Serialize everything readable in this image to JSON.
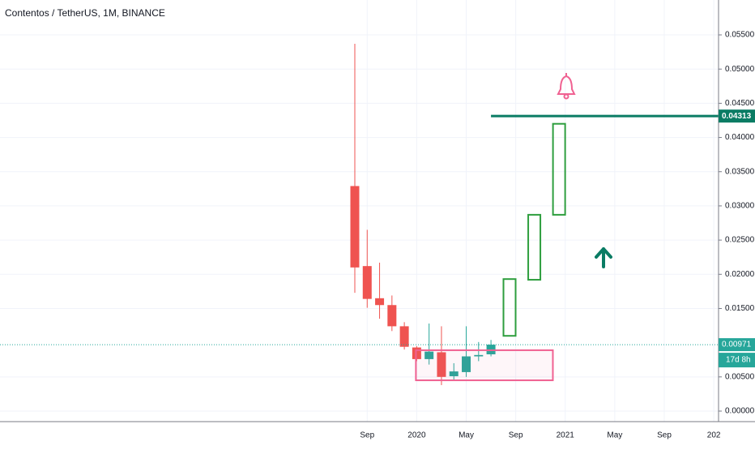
{
  "chart_data": {
    "type": "candlestick",
    "title": "Contentos / TetherUS, 1M, BINANCE",
    "categories": [
      null,
      "Sep",
      null,
      null,
      null,
      "2020",
      null,
      null,
      null,
      "May",
      null,
      null,
      null,
      "Sep",
      null,
      null,
      null,
      "2021",
      null,
      null,
      null,
      "May",
      null,
      null,
      null,
      "Sep",
      null,
      null,
      null,
      "202"
    ],
    "open": [
      0.0329,
      0.0212,
      0.0165,
      0.0155,
      0.0124,
      0.0093,
      0.0076,
      0.0086,
      0.0051,
      0.0057,
      0.008,
      0.0083,
      null,
      null,
      null,
      null,
      null,
      null,
      null,
      null,
      null,
      null,
      null,
      null,
      null,
      null,
      null,
      null,
      null,
      null
    ],
    "high": [
      0.0537,
      0.0265,
      0.0217,
      0.0169,
      0.013,
      0.0095,
      0.0128,
      0.0124,
      0.007,
      0.0124,
      0.0101,
      0.0104,
      null,
      null,
      null,
      null,
      null,
      null,
      null,
      null,
      null,
      null,
      null,
      null,
      null,
      null,
      null,
      null,
      null,
      null
    ],
    "low": [
      0.0173,
      0.0151,
      0.0135,
      0.0117,
      0.009,
      0.0073,
      0.0068,
      0.0038,
      0.0046,
      0.005,
      0.0073,
      0.008,
      null,
      null,
      null,
      null,
      null,
      null,
      null,
      null,
      null,
      null,
      null,
      null,
      null,
      null,
      null,
      null,
      null,
      null
    ],
    "close": [
      0.021,
      0.0164,
      0.0155,
      0.0124,
      0.0094,
      0.0076,
      0.0087,
      0.005,
      0.0058,
      0.008,
      0.0082,
      0.00971,
      null,
      null,
      null,
      null,
      null,
      null,
      null,
      null,
      null,
      null,
      null,
      null,
      null,
      null,
      null,
      null,
      null,
      null
    ],
    "up_color": "#26a69a",
    "down_color": "#ef5350",
    "ylim": [
      -0.00154,
      0.0601
    ],
    "yticks": [
      {
        "value": 0,
        "label": "0.00000"
      },
      {
        "value": 0.005,
        "label": "0.00500"
      },
      {
        "value": 0.015,
        "label": "0.01500"
      },
      {
        "value": 0.02,
        "label": "0.02000"
      },
      {
        "value": 0.025,
        "label": "0.02500"
      },
      {
        "value": 0.03,
        "label": "0.03000"
      },
      {
        "value": 0.035,
        "label": "0.03500"
      },
      {
        "value": 0.04,
        "label": "0.04000"
      },
      {
        "value": 0.045,
        "label": "0.04500"
      },
      {
        "value": 0.05,
        "label": "0.05000"
      },
      {
        "value": 0.055,
        "label": "0.05500"
      }
    ],
    "grid": true,
    "last_price": {
      "value": 0.00971,
      "label": "0.00971"
    },
    "countdown": "17d 8h",
    "alert_level": {
      "value": 0.04313,
      "label": "0.04313"
    },
    "projection_boxes": [
      {
        "low": 0.011,
        "high": 0.0193
      },
      {
        "low": 0.0192,
        "high": 0.0287
      },
      {
        "low": 0.0287,
        "high": 0.042
      }
    ],
    "range_box": {
      "low": 0.0045,
      "high": 0.0089
    }
  }
}
